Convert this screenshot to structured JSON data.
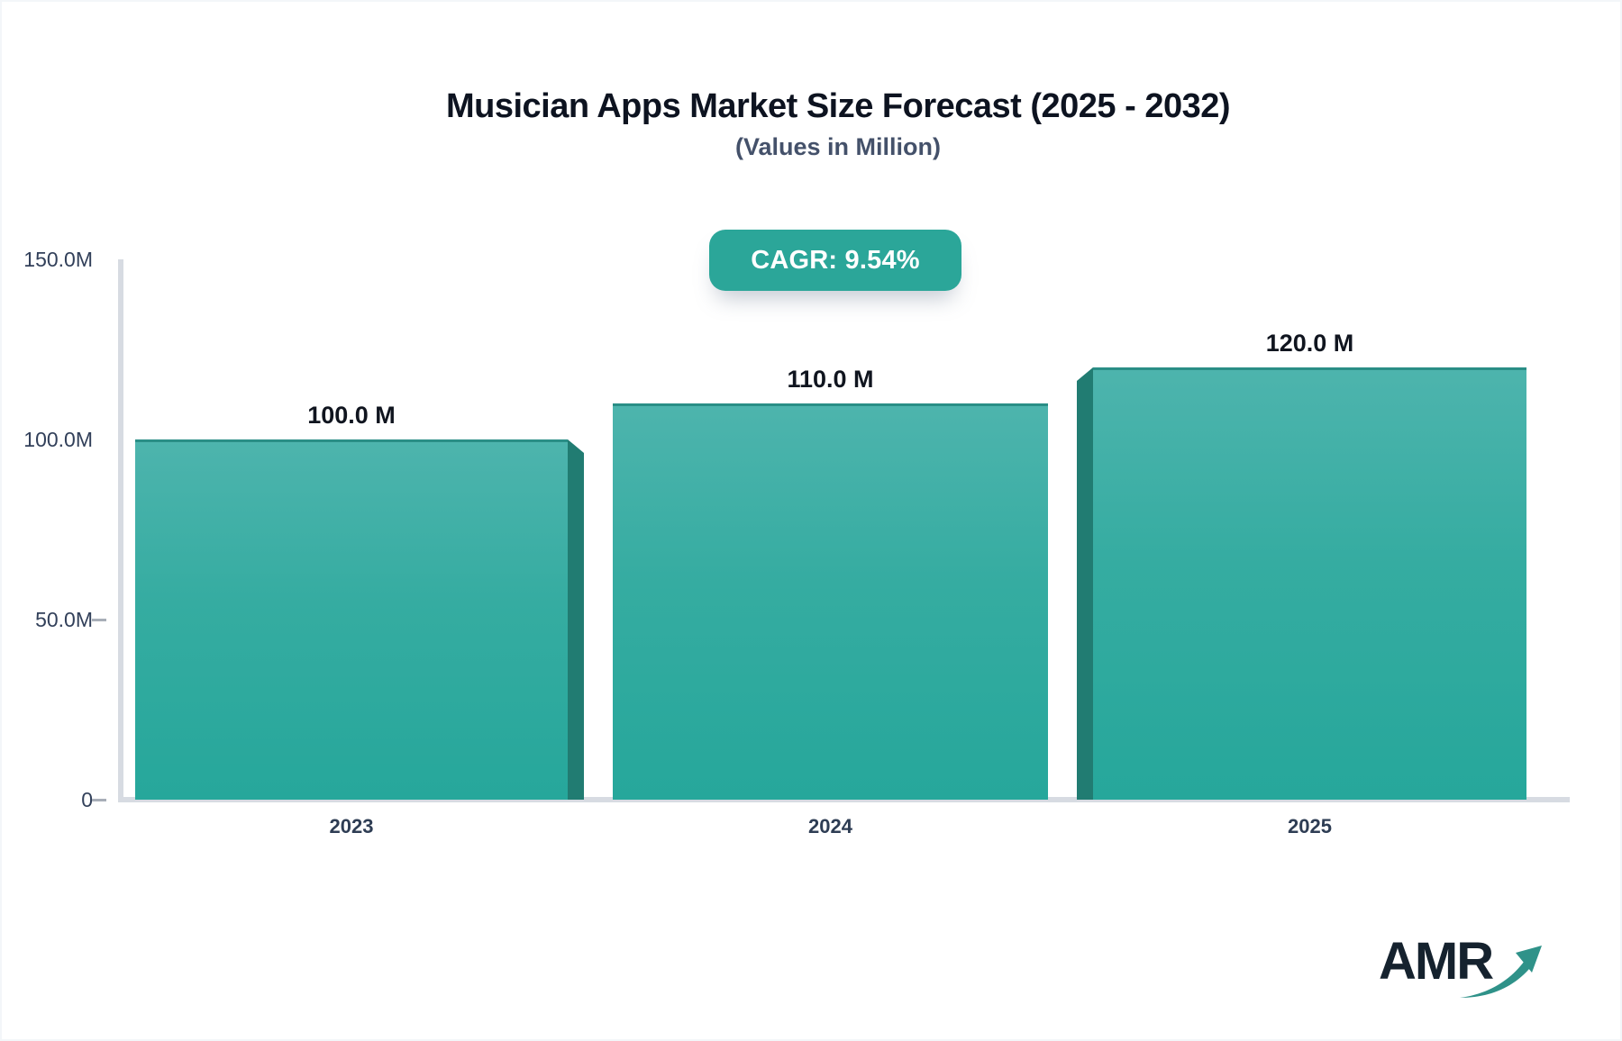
{
  "header": {
    "title": "Musician Apps Market Size Forecast (2025 - 2032)",
    "subtitle": "(Values in Million)",
    "cagr_badge": "CAGR: 9.54%"
  },
  "logo": {
    "text": "AMR"
  },
  "colors": {
    "accent_teal": "#2ba699",
    "bar_gradient_top": "#4db4ad",
    "bar_gradient_bottom": "#26a79b",
    "bar_top_edge": "#2a8e86",
    "bar_side_shadow": "#217c72",
    "axis_line": "#d7dbe2",
    "title_text": "#0d1320",
    "subtitle_text": "#44516a",
    "axis_text": "#32405a",
    "logo_navy": "#15222e",
    "logo_arrow_teal": "#2f9289"
  },
  "chart_data": {
    "type": "bar",
    "title": "Musician Apps Market Size Forecast (2025 - 2032)",
    "subtitle": "(Values in Million)",
    "unit": "Million",
    "cagr_percent": "9.54%",
    "categories": [
      "2023",
      "2024",
      "2025"
    ],
    "values": [
      100.0,
      110.0,
      120.0
    ],
    "value_labels": [
      "100.0 M",
      "110.0 M",
      "120.0 M"
    ],
    "y_ticks": [
      {
        "value": 150,
        "label": "150.0M"
      },
      {
        "value": 100,
        "label": "100.0M"
      },
      {
        "value": 50,
        "label": "50.0M"
      },
      {
        "value": 0,
        "label": "0"
      }
    ],
    "ylim": [
      0,
      150
    ],
    "grid": false,
    "legend": false
  }
}
